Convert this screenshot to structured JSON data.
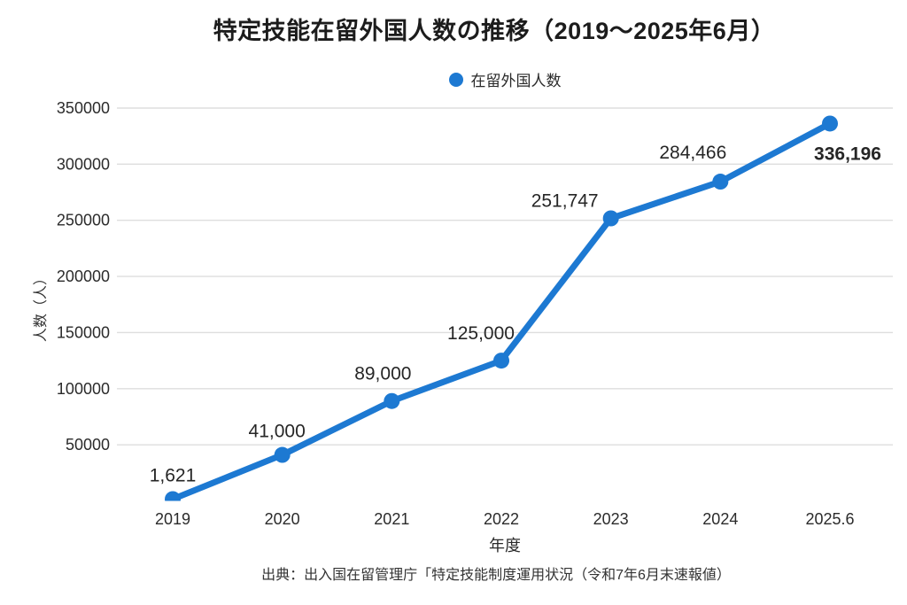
{
  "page": {
    "background": "#ffffff"
  },
  "header": {
    "title": "特定技能在留外国人数の推移（2019～2025年6月）"
  },
  "legend": {
    "label": "在留外国人数",
    "marker_color": "#1d79d2"
  },
  "chart_data": {
    "type": "line",
    "title": "特定技能在留外国人数の推移（2019～2025年6月）",
    "categories": [
      "2019",
      "2020",
      "2021",
      "2022",
      "2023",
      "2024",
      "2025.6"
    ],
    "series": [
      {
        "name": "在留外国人数",
        "values": [
          1621,
          41000,
          89000,
          125000,
          251747,
          284466,
          336196
        ],
        "color": "#1d79d2"
      }
    ],
    "point_labels": [
      "1,621",
      "41,000",
      "89,000",
      "125,000",
      "251,747",
      "284,466",
      "336,196"
    ],
    "highlight": {
      "index": 6,
      "color": "#ed7d31"
    },
    "xlabel": "年度",
    "ylabel": "人数（人）",
    "ylim": [
      0,
      350000
    ],
    "yticks": [
      50000,
      100000,
      150000,
      200000,
      250000,
      300000,
      350000
    ],
    "grid": true,
    "legend_position": "top-center",
    "marker": "circle"
  },
  "footer": {
    "source": "出典：出入国在留管理庁「特定技能制度運用状況（令和7年6月末速報値）"
  },
  "colors": {
    "line": "#1d79d2",
    "highlight": "#ed7d31",
    "grid": "#dedede",
    "text": "#2a2a2a"
  }
}
